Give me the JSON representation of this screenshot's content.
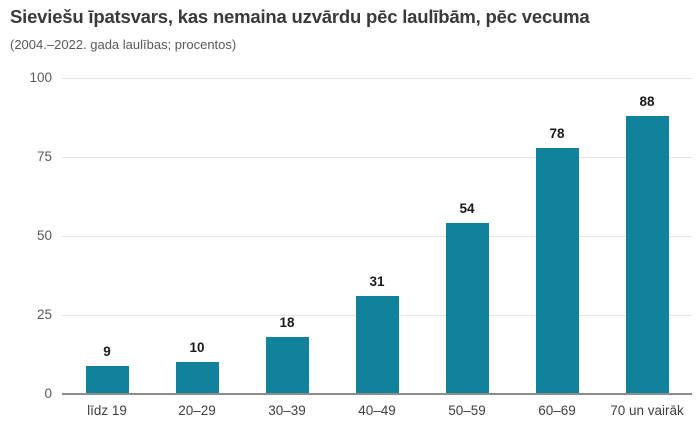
{
  "chart": {
    "title": "Sieviešu īpatsvars, kas nemaina uzvārdu pēc laulībām, pēc vecuma",
    "subtitle": "(2004.–2022. gada laulības; procentos)"
  },
  "chart_data": {
    "type": "bar",
    "title": "Sieviešu īpatsvars, kas nemaina uzvārdu pēc laulībām, pēc vecuma",
    "subtitle": "(2004.–2022. gada laulības; procentos)",
    "categories": [
      "līdz 19",
      "20–29",
      "30–39",
      "40–49",
      "50–59",
      "60–69",
      "70 un vairāk"
    ],
    "values": [
      9,
      10,
      18,
      31,
      54,
      78,
      88
    ],
    "xlabel": "",
    "ylabel": "",
    "ylim": [
      0,
      100
    ],
    "yticks": [
      0,
      25,
      50,
      75,
      100
    ],
    "grid": true,
    "legend": "none",
    "data_labels": true
  },
  "colors": {
    "bar": "#11829b",
    "gridline": "#e4e4e4",
    "axis_line": "#8c8c8c",
    "title_text": "#3a3a3a",
    "subtitle_text": "#595959",
    "tick_text": "#595959",
    "category_text": "#404040",
    "value_label_text": "#1a1a1a",
    "background": "#ffffff"
  }
}
